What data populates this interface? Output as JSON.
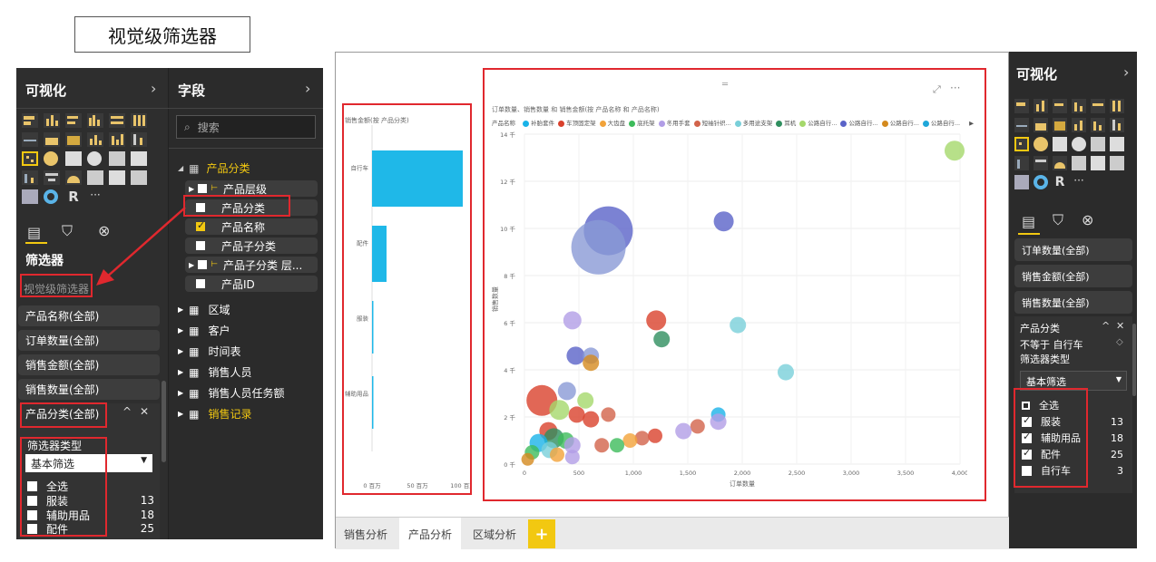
{
  "title": "视觉级筛选器",
  "left_panel": {
    "viz_title": "可视化",
    "fields_title": "字段",
    "search_placeholder": "搜索",
    "filters_title": "筛选器",
    "visual_level_label": "视觉级筛选器",
    "filters": [
      "产品名称(全部)",
      "订单数量(全部)",
      "销售金额(全部)",
      "销售数量(全部)",
      "产品分类(全部)"
    ],
    "filter_type_label": "筛选器类型",
    "filter_type_value": "基本筛选",
    "list": [
      {
        "label": "全选",
        "count": ""
      },
      {
        "label": "服装",
        "count": "13"
      },
      {
        "label": "辅助用品",
        "count": "18"
      },
      {
        "label": "配件",
        "count": "25"
      }
    ]
  },
  "fields": {
    "table1": "产品分类",
    "table1_children": [
      "产品层级",
      "产品分类",
      "产品名称",
      "产品子分类",
      "产品子分类 层...",
      "产品ID"
    ],
    "tables": [
      "区域",
      "客户",
      "时间表",
      "销售人员",
      "销售人员任务额",
      "销售记录"
    ]
  },
  "report": {
    "bar_title": "销售金额(按 产品分类)",
    "bar_categories": [
      "自行车",
      "配件",
      "服装",
      "辅助用品"
    ],
    "bar_axis": [
      "0 百万",
      "50 百万",
      "100 百万"
    ],
    "scatter_title": "订单数量、销售数量 和 销售金额(按 产品名称 和 产品名称)",
    "legend_label": "产品名称",
    "legend": [
      {
        "name": "补胎套件",
        "color": "#1ab3e8"
      },
      {
        "name": "车顶固定架",
        "color": "#d9412c"
      },
      {
        "name": "大齿盘",
        "color": "#f2a33a"
      },
      {
        "name": "底托架",
        "color": "#3dbb5b"
      },
      {
        "name": "冬用手套",
        "color": "#b19de6"
      },
      {
        "name": "短袖针织...",
        "color": "#d2634a"
      },
      {
        "name": "多用途支架",
        "color": "#79cfd9"
      },
      {
        "name": "耳机",
        "color": "#2f8f5f"
      },
      {
        "name": "公路自行...",
        "color": "#a5d86b"
      },
      {
        "name": "公路自行...",
        "color": "#5a63c8"
      },
      {
        "name": "公路自行...",
        "color": "#d48a1e"
      },
      {
        "name": "公路自行...",
        "color": "#1fa7d9"
      }
    ],
    "y_ticks": [
      "0 千",
      "2 千",
      "4 千",
      "6 千",
      "8 千",
      "10 千",
      "12 千",
      "14 千"
    ],
    "x_ticks": [
      "0",
      "500",
      "1,000",
      "1,500",
      "2,000",
      "2,500",
      "3,000",
      "3,500",
      "4,000"
    ],
    "x_label": "订单数量",
    "y_label": "销售数量",
    "tabs": [
      "销售分析",
      "产品分析",
      "区域分析"
    ],
    "add_tab": "+"
  },
  "right_panel": {
    "viz_title": "可视化",
    "filters": [
      "订单数量(全部)",
      "销售金额(全部)",
      "销售数量(全部)"
    ],
    "card_title": "产品分类",
    "card_condition": "不等于 自行车",
    "filter_type_label": "筛选器类型",
    "filter_type_value": "基本筛选",
    "list": [
      {
        "label": "全选",
        "count": ""
      },
      {
        "label": "服装",
        "count": "13"
      },
      {
        "label": "辅助用品",
        "count": "18"
      },
      {
        "label": "配件",
        "count": "25"
      },
      {
        "label": "自行车",
        "count": "3"
      }
    ]
  },
  "chart_data": {
    "type": "scatter",
    "title": "订单数量、销售数量 和 销售金额(按 产品名称 和 产品名称)",
    "xlabel": "订单数量",
    "ylabel": "销售数量",
    "xlim": [
      0,
      4000
    ],
    "ylim": [
      0,
      14000
    ],
    "points": [
      {
        "x": 3950,
        "y": 13300,
        "r": 11,
        "c": "#a5d86b"
      },
      {
        "x": 770,
        "y": 9900,
        "r": 27,
        "c": "#5a63c8"
      },
      {
        "x": 680,
        "y": 9200,
        "r": 30,
        "c": "#8a9ad6"
      },
      {
        "x": 1830,
        "y": 10300,
        "r": 11,
        "c": "#5a63c8"
      },
      {
        "x": 440,
        "y": 6100,
        "r": 10,
        "c": "#b19de6"
      },
      {
        "x": 1210,
        "y": 6100,
        "r": 11,
        "c": "#d9412c"
      },
      {
        "x": 1260,
        "y": 5300,
        "r": 9,
        "c": "#2f8f5f"
      },
      {
        "x": 1960,
        "y": 5900,
        "r": 9,
        "c": "#79cfd9"
      },
      {
        "x": 2400,
        "y": 3900,
        "r": 9,
        "c": "#79cfd9"
      },
      {
        "x": 470,
        "y": 4600,
        "r": 10,
        "c": "#5a63c8"
      },
      {
        "x": 610,
        "y": 4600,
        "r": 9,
        "c": "#8a9ad6"
      },
      {
        "x": 610,
        "y": 4300,
        "r": 9,
        "c": "#d48a1e"
      },
      {
        "x": 160,
        "y": 2700,
        "r": 17,
        "c": "#d9412c"
      },
      {
        "x": 390,
        "y": 3100,
        "r": 10,
        "c": "#8a9ad6"
      },
      {
        "x": 560,
        "y": 2700,
        "r": 9,
        "c": "#a5d86b"
      },
      {
        "x": 480,
        "y": 2100,
        "r": 9,
        "c": "#d9412c"
      },
      {
        "x": 320,
        "y": 2300,
        "r": 11,
        "c": "#a5d86b"
      },
      {
        "x": 610,
        "y": 1900,
        "r": 9,
        "c": "#d9412c"
      },
      {
        "x": 770,
        "y": 2100,
        "r": 8,
        "c": "#d2634a"
      },
      {
        "x": 1780,
        "y": 2100,
        "r": 8,
        "c": "#1ab3e8"
      },
      {
        "x": 1780,
        "y": 1800,
        "r": 9,
        "c": "#b19de6"
      },
      {
        "x": 1590,
        "y": 1600,
        "r": 8,
        "c": "#d2634a"
      },
      {
        "x": 1460,
        "y": 1400,
        "r": 9,
        "c": "#b19de6"
      },
      {
        "x": 1200,
        "y": 1200,
        "r": 8,
        "c": "#d9412c"
      },
      {
        "x": 1080,
        "y": 1100,
        "r": 8,
        "c": "#d2634a"
      },
      {
        "x": 970,
        "y": 1000,
        "r": 8,
        "c": "#f2a33a"
      },
      {
        "x": 850,
        "y": 800,
        "r": 8,
        "c": "#3dbb5b"
      },
      {
        "x": 710,
        "y": 800,
        "r": 8,
        "c": "#d2634a"
      },
      {
        "x": 220,
        "y": 1400,
        "r": 10,
        "c": "#d9412c"
      },
      {
        "x": 270,
        "y": 1100,
        "r": 11,
        "c": "#2f8f5f"
      },
      {
        "x": 130,
        "y": 900,
        "r": 10,
        "c": "#1ab3e8"
      },
      {
        "x": 380,
        "y": 1000,
        "r": 9,
        "c": "#3dbb5b"
      },
      {
        "x": 440,
        "y": 800,
        "r": 9,
        "c": "#b19de6"
      },
      {
        "x": 70,
        "y": 500,
        "r": 8,
        "c": "#3dbb5b"
      },
      {
        "x": 230,
        "y": 600,
        "r": 9,
        "c": "#79cfd9"
      },
      {
        "x": 30,
        "y": 200,
        "r": 7,
        "c": "#d48a1e"
      },
      {
        "x": 440,
        "y": 300,
        "r": 8,
        "c": "#b19de6"
      },
      {
        "x": 300,
        "y": 400,
        "r": 8,
        "c": "#f2a33a"
      }
    ]
  }
}
